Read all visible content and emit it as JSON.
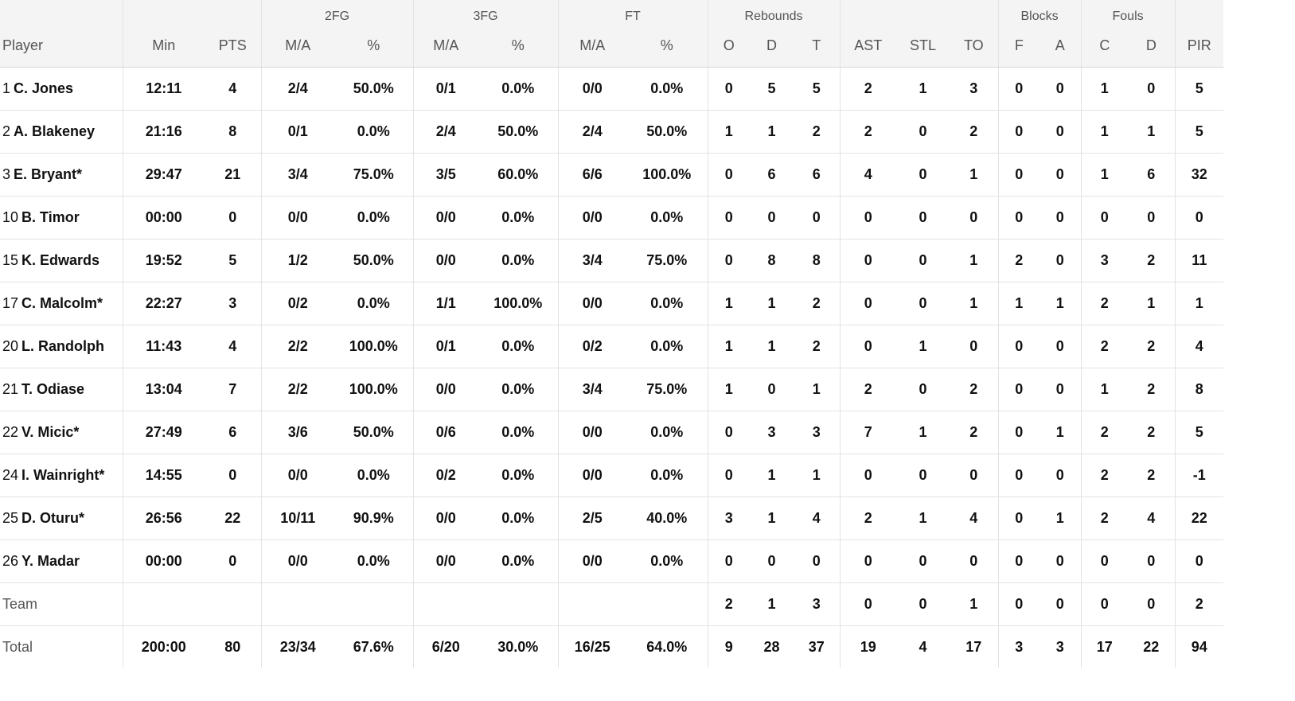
{
  "header": {
    "groups": [
      "2FG",
      "3FG",
      "FT",
      "Rebounds",
      "Blocks",
      "Fouls"
    ],
    "columns": [
      "Player",
      "Min",
      "PTS",
      "M/A",
      "%",
      "M/A",
      "%",
      "M/A",
      "%",
      "O",
      "D",
      "T",
      "AST",
      "STL",
      "TO",
      "F",
      "A",
      "C",
      "D",
      "PIR"
    ]
  },
  "players": [
    {
      "num": "1",
      "name": "C. Jones",
      "stats": [
        "12:11",
        "4",
        "2/4",
        "50.0%",
        "0/1",
        "0.0%",
        "0/0",
        "0.0%",
        "0",
        "5",
        "5",
        "2",
        "1",
        "3",
        "0",
        "0",
        "1",
        "0",
        "5"
      ]
    },
    {
      "num": "2",
      "name": "A. Blakeney",
      "stats": [
        "21:16",
        "8",
        "0/1",
        "0.0%",
        "2/4",
        "50.0%",
        "2/4",
        "50.0%",
        "1",
        "1",
        "2",
        "2",
        "0",
        "2",
        "0",
        "0",
        "1",
        "1",
        "5"
      ]
    },
    {
      "num": "3",
      "name": "E. Bryant*",
      "stats": [
        "29:47",
        "21",
        "3/4",
        "75.0%",
        "3/5",
        "60.0%",
        "6/6",
        "100.0%",
        "0",
        "6",
        "6",
        "4",
        "0",
        "1",
        "0",
        "0",
        "1",
        "6",
        "32"
      ]
    },
    {
      "num": "10",
      "name": "B. Timor",
      "stats": [
        "00:00",
        "0",
        "0/0",
        "0.0%",
        "0/0",
        "0.0%",
        "0/0",
        "0.0%",
        "0",
        "0",
        "0",
        "0",
        "0",
        "0",
        "0",
        "0",
        "0",
        "0",
        "0"
      ]
    },
    {
      "num": "15",
      "name": "K. Edwards",
      "stats": [
        "19:52",
        "5",
        "1/2",
        "50.0%",
        "0/0",
        "0.0%",
        "3/4",
        "75.0%",
        "0",
        "8",
        "8",
        "0",
        "0",
        "1",
        "2",
        "0",
        "3",
        "2",
        "11"
      ]
    },
    {
      "num": "17",
      "name": "C. Malcolm*",
      "stats": [
        "22:27",
        "3",
        "0/2",
        "0.0%",
        "1/1",
        "100.0%",
        "0/0",
        "0.0%",
        "1",
        "1",
        "2",
        "0",
        "0",
        "1",
        "1",
        "1",
        "2",
        "1",
        "1"
      ]
    },
    {
      "num": "20",
      "name": "L. Randolph",
      "stats": [
        "11:43",
        "4",
        "2/2",
        "100.0%",
        "0/1",
        "0.0%",
        "0/2",
        "0.0%",
        "1",
        "1",
        "2",
        "0",
        "1",
        "0",
        "0",
        "0",
        "2",
        "2",
        "4"
      ]
    },
    {
      "num": "21",
      "name": "T. Odiase",
      "stats": [
        "13:04",
        "7",
        "2/2",
        "100.0%",
        "0/0",
        "0.0%",
        "3/4",
        "75.0%",
        "1",
        "0",
        "1",
        "2",
        "0",
        "2",
        "0",
        "0",
        "1",
        "2",
        "8"
      ]
    },
    {
      "num": "22",
      "name": "V. Micic*",
      "stats": [
        "27:49",
        "6",
        "3/6",
        "50.0%",
        "0/6",
        "0.0%",
        "0/0",
        "0.0%",
        "0",
        "3",
        "3",
        "7",
        "1",
        "2",
        "0",
        "1",
        "2",
        "2",
        "5"
      ]
    },
    {
      "num": "24",
      "name": "I. Wainright*",
      "stats": [
        "14:55",
        "0",
        "0/0",
        "0.0%",
        "0/2",
        "0.0%",
        "0/0",
        "0.0%",
        "0",
        "1",
        "1",
        "0",
        "0",
        "0",
        "0",
        "0",
        "2",
        "2",
        "-1"
      ]
    },
    {
      "num": "25",
      "name": "D. Oturu*",
      "stats": [
        "26:56",
        "22",
        "10/11",
        "90.9%",
        "0/0",
        "0.0%",
        "2/5",
        "40.0%",
        "3",
        "1",
        "4",
        "2",
        "1",
        "4",
        "0",
        "1",
        "2",
        "4",
        "22"
      ]
    },
    {
      "num": "26",
      "name": "Y. Madar",
      "stats": [
        "00:00",
        "0",
        "0/0",
        "0.0%",
        "0/0",
        "0.0%",
        "0/0",
        "0.0%",
        "0",
        "0",
        "0",
        "0",
        "0",
        "0",
        "0",
        "0",
        "0",
        "0",
        "0"
      ]
    }
  ],
  "team_row": {
    "label": "Team",
    "stats": [
      "",
      "",
      "",
      "",
      "",
      "",
      "",
      "",
      "2",
      "1",
      "3",
      "0",
      "0",
      "1",
      "0",
      "0",
      "0",
      "0",
      "2"
    ]
  },
  "total_row": {
    "label": "Total",
    "stats": [
      "200:00",
      "80",
      "23/34",
      "67.6%",
      "6/20",
      "30.0%",
      "16/25",
      "64.0%",
      "9",
      "28",
      "37",
      "19",
      "4",
      "17",
      "3",
      "3",
      "17",
      "22",
      "94"
    ]
  }
}
